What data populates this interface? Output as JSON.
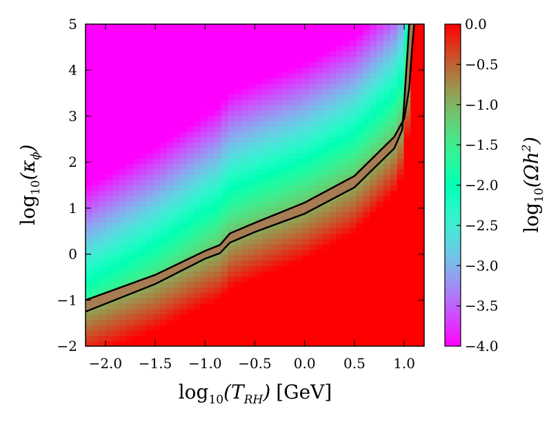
{
  "chart_data": {
    "type": "heatmap",
    "title": "",
    "xlabel": {
      "base": "log",
      "sub": "10",
      "open": "(",
      "var": "T",
      "varsub": "RH",
      "close": ")",
      "unit": "[GeV]"
    },
    "ylabel": {
      "base": "log",
      "sub": "10",
      "open": "(",
      "var": "κ",
      "varsub": "ϕ",
      "close": ")"
    },
    "colorbar_label": {
      "base": "log",
      "sub": "10",
      "open": "(",
      "var": "Ωh",
      "sup": "2",
      "close": ")"
    },
    "xlim": [
      -2.2,
      1.2
    ],
    "ylim": [
      -2,
      5
    ],
    "clim": [
      -4.0,
      0.0
    ],
    "x_ticks": [
      -2.0,
      -1.5,
      -1.0,
      -0.5,
      0.0,
      0.5,
      1.0
    ],
    "x_tick_labels": [
      "−2.0",
      "−1.5",
      "−1.0",
      "−0.5",
      "0.0",
      "0.5",
      "1.0"
    ],
    "y_ticks": [
      -2,
      -1,
      0,
      1,
      2,
      3,
      4,
      5
    ],
    "y_tick_labels": [
      "−2",
      "−1",
      "0",
      "1",
      "2",
      "3",
      "4",
      "5"
    ],
    "cbar_ticks": [
      0.0,
      -0.5,
      -1.0,
      -1.5,
      -2.0,
      -2.5,
      -3.0,
      -3.5,
      -4.0
    ],
    "cbar_tick_labels": [
      "0.0",
      "−0.5",
      "−1.0",
      "−1.5",
      "−2.0",
      "−2.5",
      "−3.0",
      "−3.5",
      "−4.0"
    ],
    "colormap": "rainbow",
    "band_color": "#a67c52",
    "band": {
      "upper": [
        [
          -2.2,
          -1.0
        ],
        [
          -1.5,
          -0.45
        ],
        [
          -1.0,
          0.07
        ],
        [
          -0.85,
          0.2
        ],
        [
          -0.75,
          0.45
        ],
        [
          -0.5,
          0.68
        ],
        [
          0.0,
          1.12
        ],
        [
          0.5,
          1.7
        ],
        [
          0.9,
          2.55
        ],
        [
          1.0,
          2.95
        ],
        [
          1.05,
          3.6
        ],
        [
          1.08,
          4.5
        ],
        [
          1.1,
          5.0
        ]
      ],
      "lower": [
        [
          -2.2,
          -1.25
        ],
        [
          -1.5,
          -0.65
        ],
        [
          -1.0,
          -0.1
        ],
        [
          -0.85,
          0.02
        ],
        [
          -0.75,
          0.25
        ],
        [
          -0.5,
          0.48
        ],
        [
          0.0,
          0.88
        ],
        [
          0.5,
          1.45
        ],
        [
          0.9,
          2.3
        ],
        [
          0.98,
          2.7
        ],
        [
          1.0,
          3.3
        ],
        [
          1.03,
          4.3
        ],
        [
          1.05,
          5.0
        ]
      ]
    }
  }
}
